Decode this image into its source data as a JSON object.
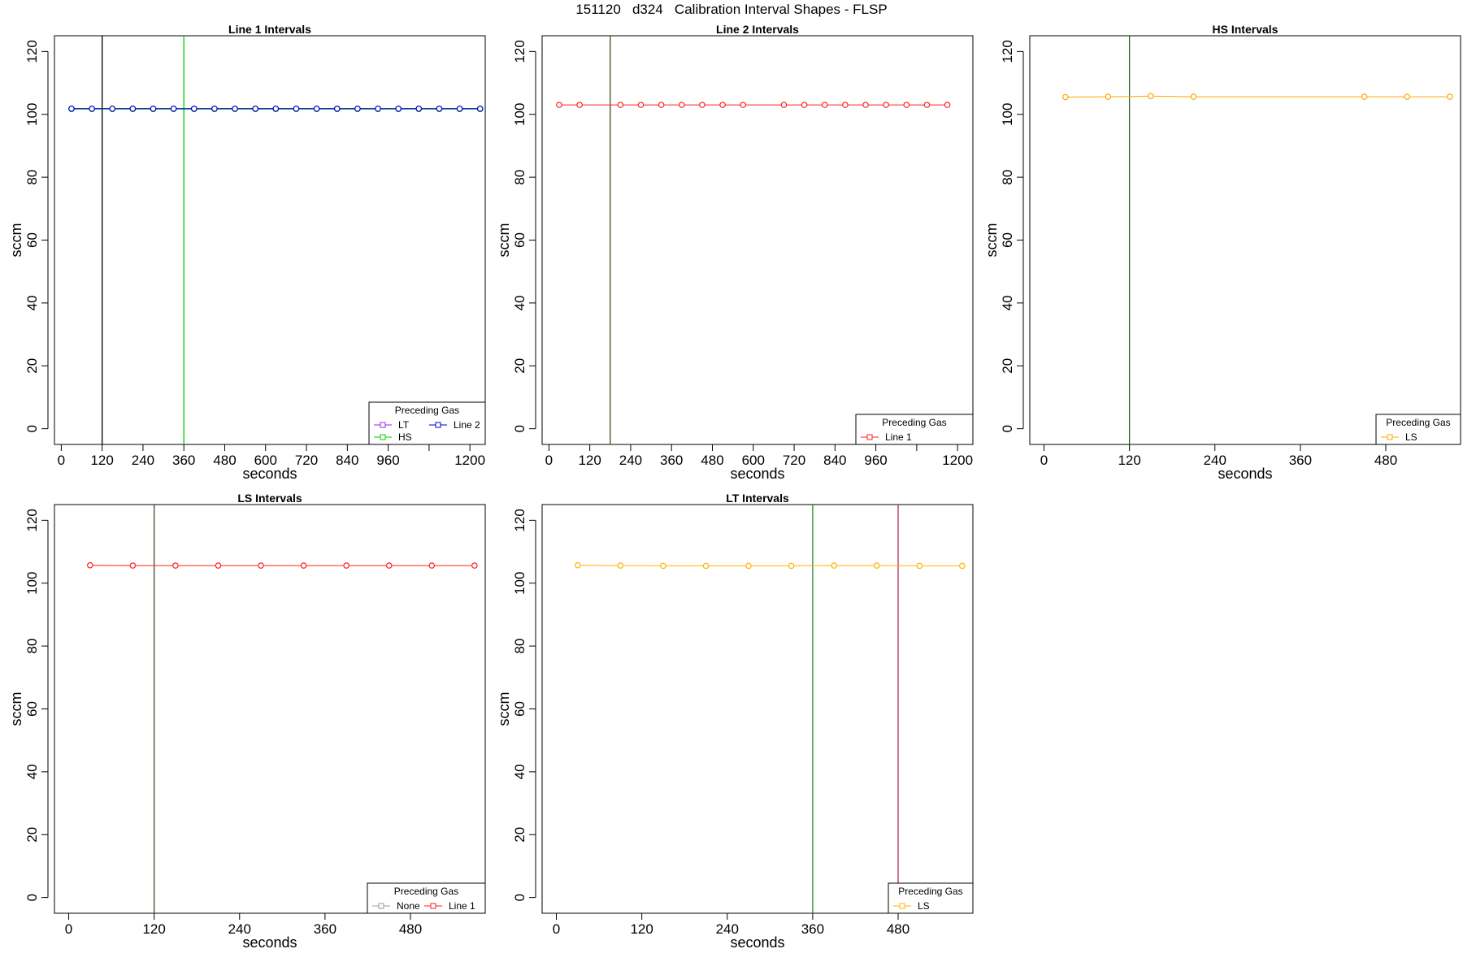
{
  "title": "151120   d324   Calibration Interval Shapes - FLSP",
  "legend_title": "Preceding Gas",
  "charts": [
    {
      "id": "line1",
      "title": "Line 1 Intervals",
      "xlabel": "seconds",
      "ylabel": "sccm",
      "xlim": [
        -20,
        1245
      ],
      "ylim": [
        -5,
        125
      ],
      "xticks": [
        0,
        120,
        240,
        360,
        480,
        600,
        720,
        840,
        960,
        1080,
        1200
      ],
      "xtick_labels": [
        "0",
        "120",
        "240",
        "360",
        "480",
        "600",
        "720",
        "840",
        "960",
        "",
        "1200"
      ],
      "yticks": [
        0,
        20,
        40,
        60,
        80,
        100,
        120
      ],
      "vlines": [
        {
          "x": 120,
          "color": "#000000"
        },
        {
          "x": 360,
          "color": "#00cc00"
        }
      ],
      "series": [
        {
          "name": "LT",
          "color": "#a020f0",
          "x": [
            30,
            90,
            150,
            210,
            270,
            330,
            390,
            450,
            510,
            570,
            630,
            690,
            750,
            810,
            870,
            930,
            990,
            1050,
            1110,
            1170,
            1230
          ],
          "y": [
            101.8,
            101.8,
            101.8,
            101.8,
            101.8,
            101.8,
            101.8,
            101.8,
            101.8,
            101.8,
            101.8,
            101.8,
            101.8,
            101.8,
            101.8,
            101.8,
            101.8,
            101.8,
            101.8,
            101.8,
            101.8
          ]
        },
        {
          "name": "HS",
          "color": "#00cc00",
          "x": [
            30,
            90,
            150,
            210,
            270,
            330,
            390,
            450,
            510,
            570,
            630,
            690,
            750,
            810,
            870,
            930,
            990,
            1050,
            1110,
            1170,
            1230
          ],
          "y": [
            101.7,
            101.7,
            101.7,
            101.7,
            101.7,
            101.7,
            101.7,
            101.7,
            101.7,
            101.7,
            101.7,
            101.7,
            101.7,
            101.7,
            101.7,
            101.7,
            101.7,
            101.7,
            101.7,
            101.7,
            101.7
          ]
        },
        {
          "name": "Line 2",
          "color": "#0000cd",
          "x": [
            30,
            90,
            150,
            210,
            270,
            330,
            390,
            450,
            510,
            570,
            630,
            690,
            750,
            810,
            870,
            930,
            990,
            1050,
            1110,
            1170,
            1230
          ],
          "y": [
            101.8,
            101.8,
            101.8,
            101.8,
            101.8,
            101.8,
            101.8,
            101.8,
            101.8,
            101.8,
            101.8,
            101.8,
            101.8,
            101.8,
            101.8,
            101.8,
            101.8,
            101.8,
            101.8,
            101.8,
            101.8
          ]
        }
      ]
    },
    {
      "id": "line2",
      "title": "Line 2 Intervals",
      "xlabel": "seconds",
      "ylabel": "sccm",
      "xlim": [
        -20,
        1245
      ],
      "ylim": [
        -5,
        125
      ],
      "xticks": [
        0,
        120,
        240,
        360,
        480,
        600,
        720,
        840,
        960,
        1080,
        1200
      ],
      "xtick_labels": [
        "0",
        "120",
        "240",
        "360",
        "480",
        "600",
        "720",
        "840",
        "960",
        "",
        "1200"
      ],
      "yticks": [
        0,
        20,
        40,
        60,
        80,
        100,
        120
      ],
      "vlines": [
        {
          "x": 180,
          "color": "#8b0000"
        },
        {
          "x": 180,
          "color": "#556b2f"
        }
      ],
      "series": [
        {
          "name": "Line 1",
          "color": "#ff2020",
          "x": [
            30,
            90,
            210,
            270,
            330,
            390,
            450,
            510,
            570,
            690,
            750,
            810,
            870,
            930,
            990,
            1050,
            1110,
            1170
          ],
          "y": [
            103.0,
            103.0,
            103.0,
            103.0,
            103.0,
            103.0,
            103.0,
            103.0,
            103.0,
            103.0,
            103.0,
            103.0,
            103.0,
            103.0,
            103.0,
            103.0,
            103.0,
            103.0
          ]
        }
      ]
    },
    {
      "id": "hs",
      "title": "HS Intervals",
      "xlabel": "seconds",
      "ylabel": "sccm",
      "xlim": [
        -20,
        585
      ],
      "ylim": [
        -5,
        125
      ],
      "xticks": [
        0,
        120,
        240,
        360,
        480
      ],
      "xtick_labels": [
        "0",
        "120",
        "240",
        "360",
        "480"
      ],
      "yticks": [
        0,
        20,
        40,
        60,
        80,
        100,
        120
      ],
      "vlines": [
        {
          "x": 120,
          "color": "#2e6b1e"
        }
      ],
      "series": [
        {
          "name": "LS",
          "color": "#ffa500",
          "x": [
            30,
            90,
            150,
            210,
            450,
            510,
            570
          ],
          "y": [
            105.5,
            105.6,
            105.8,
            105.6,
            105.6,
            105.6,
            105.6
          ]
        }
      ]
    },
    {
      "id": "ls",
      "title": "LS Intervals",
      "xlabel": "seconds",
      "ylabel": "sccm",
      "xlim": [
        -20,
        585
      ],
      "ylim": [
        -5,
        125
      ],
      "xticks": [
        0,
        120,
        240,
        360,
        480
      ],
      "xtick_labels": [
        "0",
        "120",
        "240",
        "360",
        "480"
      ],
      "yticks": [
        0,
        20,
        40,
        60,
        80,
        100,
        120
      ],
      "vlines": [
        {
          "x": 120,
          "color": "#3b5323"
        }
      ],
      "series": [
        {
          "name": "None",
          "color": "#999999",
          "x": [],
          "y": []
        },
        {
          "name": "Line 1",
          "color": "#ff2020",
          "x": [
            30,
            90,
            150,
            210,
            270,
            330,
            390,
            450,
            510,
            570
          ],
          "y": [
            105.7,
            105.6,
            105.6,
            105.6,
            105.6,
            105.6,
            105.6,
            105.6,
            105.6,
            105.6
          ]
        }
      ]
    },
    {
      "id": "lt",
      "title": "LT Intervals",
      "xlabel": "seconds",
      "ylabel": "sccm",
      "xlim": [
        -20,
        585
      ],
      "ylim": [
        -5,
        125
      ],
      "xticks": [
        0,
        120,
        240,
        360,
        480
      ],
      "xtick_labels": [
        "0",
        "120",
        "240",
        "360",
        "480"
      ],
      "yticks": [
        0,
        20,
        40,
        60,
        80,
        100,
        120
      ],
      "vlines": [
        {
          "x": 360,
          "color": "#228b22"
        },
        {
          "x": 480,
          "color": "#b03060"
        }
      ],
      "series": [
        {
          "name": "LS",
          "color": "#ffb300",
          "x": [
            30,
            90,
            150,
            210,
            270,
            330,
            390,
            450,
            510,
            570
          ],
          "y": [
            105.7,
            105.6,
            105.5,
            105.5,
            105.5,
            105.5,
            105.6,
            105.6,
            105.5,
            105.5
          ]
        }
      ]
    }
  ]
}
